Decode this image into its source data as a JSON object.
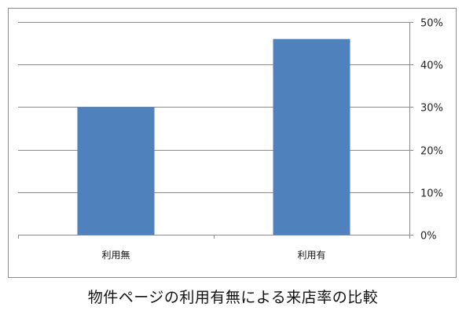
{
  "chart_data": {
    "type": "bar",
    "categories": [
      "利用無",
      "利用有"
    ],
    "values": [
      30,
      46
    ],
    "ylim": [
      0,
      50
    ],
    "yticks": [
      0,
      10,
      20,
      30,
      40,
      50
    ],
    "ytick_labels": [
      "0%",
      "10%",
      "20%",
      "30%",
      "40%",
      "50%"
    ],
    "y_axis_position": "right",
    "grid": true,
    "bar_color": "#4f81bd"
  },
  "caption": "物件ページの利用有無による来店率の比較"
}
